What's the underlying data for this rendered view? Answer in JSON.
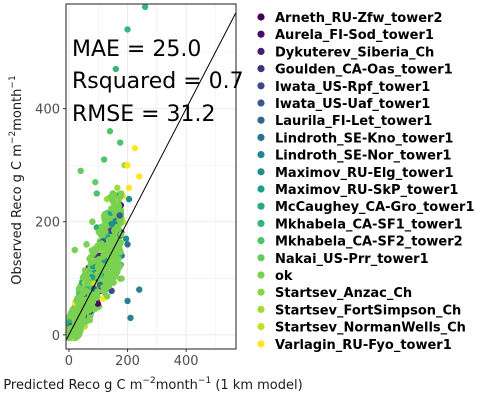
{
  "chart_data": {
    "type": "scatter",
    "title": "",
    "xlabel_main": "Predicted Reco g C m",
    "xlabel_sup1": "−2",
    "xlabel_mid": "month",
    "xlabel_sup2": "−1",
    "xlabel_tail": " (1 km model)",
    "ylabel_main": "Observed Reco g C m",
    "ylabel_sup1": "−2",
    "ylabel_mid": "month",
    "ylabel_sup2": "−1",
    "xlim": [
      -10,
      570
    ],
    "ylim": [
      -25,
      585
    ],
    "xticks": [
      0,
      200,
      400
    ],
    "yticks": [
      0,
      200,
      400
    ],
    "grid": true,
    "reference_line": "1:1",
    "annotations": [
      "MAE = 25.0",
      "Rsquared = 0.7",
      "RMSE = 31.2"
    ],
    "legend_position": "right",
    "series": [
      {
        "name": "Arneth_RU-Zfw_tower2",
        "color": "#440154",
        "points": [
          [
            70,
            55
          ],
          [
            85,
            72
          ],
          [
            95,
            60
          ],
          [
            110,
            80
          ]
        ]
      },
      {
        "name": "Aurela_FI-Sod_tower1",
        "color": "#470e61",
        "points": [
          [
            60,
            40
          ],
          [
            75,
            52
          ],
          [
            90,
            66
          ],
          [
            105,
            90
          ],
          [
            120,
            100
          ]
        ]
      },
      {
        "name": "Dykuterev_Siberia_Ch",
        "color": "#481b6d",
        "points": [
          [
            95,
            130
          ],
          [
            100,
            122
          ],
          [
            60,
            55
          ],
          [
            80,
            68
          ]
        ]
      },
      {
        "name": "Goulden_CA-Oas_tower1",
        "color": "#46307e",
        "points": [
          [
            40,
            30
          ],
          [
            70,
            75
          ],
          [
            100,
            95
          ],
          [
            130,
            120
          ]
        ]
      },
      {
        "name": "Iwata_US-Rpf_tower1",
        "color": "#3f4788",
        "points": [
          [
            50,
            45
          ],
          [
            80,
            70
          ],
          [
            120,
            110
          ]
        ]
      },
      {
        "name": "Iwata_US-Uaf_tower1",
        "color": "#38598c",
        "points": [
          [
            60,
            50
          ],
          [
            95,
            88
          ],
          [
            140,
            120
          ]
        ]
      },
      {
        "name": "Laurila_FI-Let_tower1",
        "color": "#32648e",
        "points": [
          [
            45,
            38
          ],
          [
            90,
            80
          ],
          [
            125,
            115
          ]
        ]
      },
      {
        "name": "Lindroth_SE-Kno_tower1",
        "color": "#2c728e",
        "points": [
          [
            55,
            60
          ],
          [
            85,
            95
          ],
          [
            150,
            140
          ],
          [
            200,
            160
          ]
        ]
      },
      {
        "name": "Lindroth_SE-Nor_tower1",
        "color": "#25838e",
        "points": [
          [
            210,
            30
          ],
          [
            240,
            80
          ],
          [
            200,
            60
          ],
          [
            180,
            140
          ],
          [
            165,
            125
          ]
        ]
      },
      {
        "name": "Maximov_RU-Elg_tower1",
        "color": "#1f908c",
        "points": [
          [
            140,
            190
          ],
          [
            205,
            240
          ],
          [
            195,
            170
          ]
        ]
      },
      {
        "name": "Maximov_RU-SkP_tower1",
        "color": "#1f9e89",
        "points": [
          [
            80,
            90
          ],
          [
            110,
            120
          ],
          [
            150,
            145
          ]
        ]
      },
      {
        "name": "McCaughey_CA-Gro_tower1",
        "color": "#25ac82",
        "points": [
          [
            95,
            190
          ],
          [
            130,
            215
          ],
          [
            140,
            95
          ]
        ]
      },
      {
        "name": "Mkhabela_CA-SF1_tower1",
        "color": "#35b779",
        "points": [
          [
            200,
            540
          ],
          [
            260,
            580
          ],
          [
            160,
            470
          ],
          [
            300,
            600
          ]
        ]
      },
      {
        "name": "Mkhabela_CA-SF2_tower2",
        "color": "#4ec36b",
        "points": [
          [
            95,
            250
          ],
          [
            120,
            310
          ],
          [
            140,
            360
          ],
          [
            175,
            340
          ]
        ]
      },
      {
        "name": "Nakai_US-Prr_tower1",
        "color": "#63cb5f",
        "points": [
          [
            40,
            290
          ],
          [
            90,
            270
          ],
          [
            150,
            250
          ]
        ]
      },
      {
        "name": "ok",
        "color": "#7ad151",
        "points": [
          [
            20,
            150
          ],
          [
            60,
            160
          ],
          [
            80,
            200
          ],
          [
            140,
            160
          ]
        ]
      },
      {
        "name": "Startsev_Anzac_Ch",
        "color": "#86d549",
        "points": [
          [
            170,
            235
          ],
          [
            150,
            190
          ],
          [
            120,
            210
          ]
        ]
      },
      {
        "name": "Startsev_FortSimpson_Ch",
        "color": "#a2da37",
        "points": [
          [
            130,
            240
          ],
          [
            165,
            260
          ],
          [
            190,
            300
          ]
        ]
      },
      {
        "name": "Startsev_NormanWells_Ch",
        "color": "#c2df23",
        "points": [
          [
            140,
            150
          ],
          [
            165,
            170
          ],
          [
            185,
            200
          ]
        ]
      },
      {
        "name": "Varlagin_RU-Fyo_tower1",
        "color": "#fde725",
        "points": [
          [
            200,
            300
          ],
          [
            225,
            330
          ],
          [
            205,
            260
          ],
          [
            185,
            245
          ],
          [
            240,
            280
          ]
        ]
      }
    ]
  }
}
